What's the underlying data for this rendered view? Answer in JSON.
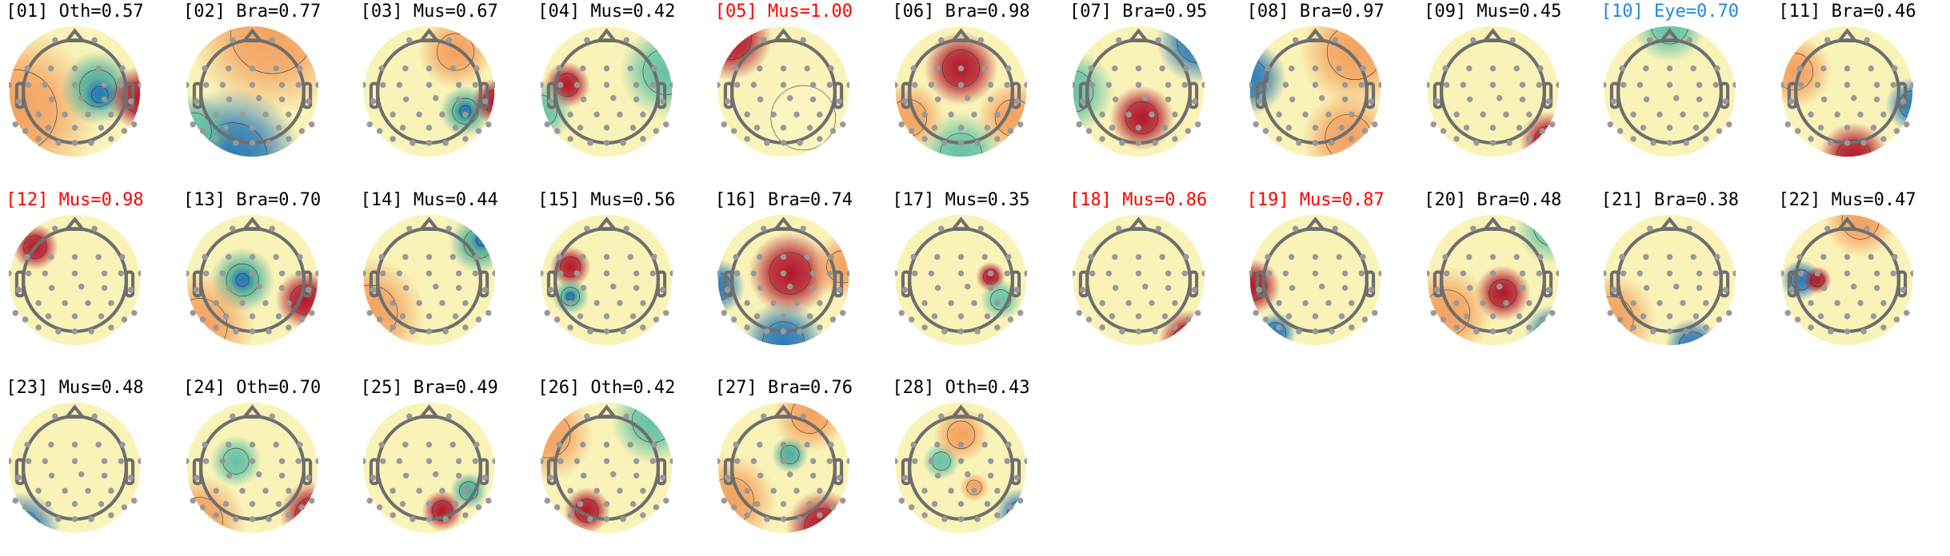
{
  "chart_data": {
    "type": "heatmap",
    "colormap": "Spectral_r",
    "label_colors": {
      "default": "#000000",
      "muscle_flagged": "#ff0000",
      "eye": "#1e88e5"
    },
    "components": [
      {
        "title": "[01] Oth=0.57",
        "label": "Oth",
        "score": 0.57,
        "color": "#000000"
      },
      {
        "title": "[02] Bra=0.77",
        "label": "Bra",
        "score": 0.77,
        "color": "#000000"
      },
      {
        "title": "[03] Mus=0.67",
        "label": "Mus",
        "score": 0.67,
        "color": "#000000"
      },
      {
        "title": "[04] Mus=0.42",
        "label": "Mus",
        "score": 0.42,
        "color": "#000000"
      },
      {
        "title": "[05] Mus=1.00",
        "label": "Mus",
        "score": 1.0,
        "color": "#ff0000"
      },
      {
        "title": "[06] Bra=0.98",
        "label": "Bra",
        "score": 0.98,
        "color": "#000000"
      },
      {
        "title": "[07] Bra=0.95",
        "label": "Bra",
        "score": 0.95,
        "color": "#000000"
      },
      {
        "title": "[08] Bra=0.97",
        "label": "Bra",
        "score": 0.97,
        "color": "#000000"
      },
      {
        "title": "[09] Mus=0.45",
        "label": "Mus",
        "score": 0.45,
        "color": "#000000"
      },
      {
        "title": "[10] Eye=0.70",
        "label": "Eye",
        "score": 0.7,
        "color": "#1e88e5"
      },
      {
        "title": "[11] Bra=0.46",
        "label": "Bra",
        "score": 0.46,
        "color": "#000000"
      },
      {
        "title": "[12] Mus=0.98",
        "label": "Mus",
        "score": 0.98,
        "color": "#ff0000"
      },
      {
        "title": "[13] Bra=0.70",
        "label": "Bra",
        "score": 0.7,
        "color": "#000000"
      },
      {
        "title": "[14] Mus=0.44",
        "label": "Mus",
        "score": 0.44,
        "color": "#000000"
      },
      {
        "title": "[15] Mus=0.56",
        "label": "Mus",
        "score": 0.56,
        "color": "#000000"
      },
      {
        "title": "[16] Bra=0.74",
        "label": "Bra",
        "score": 0.74,
        "color": "#000000"
      },
      {
        "title": "[17] Mus=0.35",
        "label": "Mus",
        "score": 0.35,
        "color": "#000000"
      },
      {
        "title": "[18] Mus=0.86",
        "label": "Mus",
        "score": 0.86,
        "color": "#ff0000"
      },
      {
        "title": "[19] Mus=0.87",
        "label": "Mus",
        "score": 0.87,
        "color": "#ff0000"
      },
      {
        "title": "[20] Bra=0.48",
        "label": "Bra",
        "score": 0.48,
        "color": "#000000"
      },
      {
        "title": "[21] Bra=0.38",
        "label": "Bra",
        "score": 0.38,
        "color": "#000000"
      },
      {
        "title": "[22] Mus=0.47",
        "label": "Mus",
        "score": 0.47,
        "color": "#000000"
      },
      {
        "title": "[23] Mus=0.48",
        "label": "Mus",
        "score": 0.48,
        "color": "#000000"
      },
      {
        "title": "[24] Oth=0.70",
        "label": "Oth",
        "score": 0.7,
        "color": "#000000"
      },
      {
        "title": "[25] Bra=0.49",
        "label": "Bra",
        "score": 0.49,
        "color": "#000000"
      },
      {
        "title": "[26] Oth=0.42",
        "label": "Oth",
        "score": 0.42,
        "color": "#000000"
      },
      {
        "title": "[27] Bra=0.76",
        "label": "Bra",
        "score": 0.76,
        "color": "#000000"
      },
      {
        "title": "[28] Oth=0.43",
        "label": "Oth",
        "score": 0.43,
        "color": "#000000"
      }
    ]
  }
}
